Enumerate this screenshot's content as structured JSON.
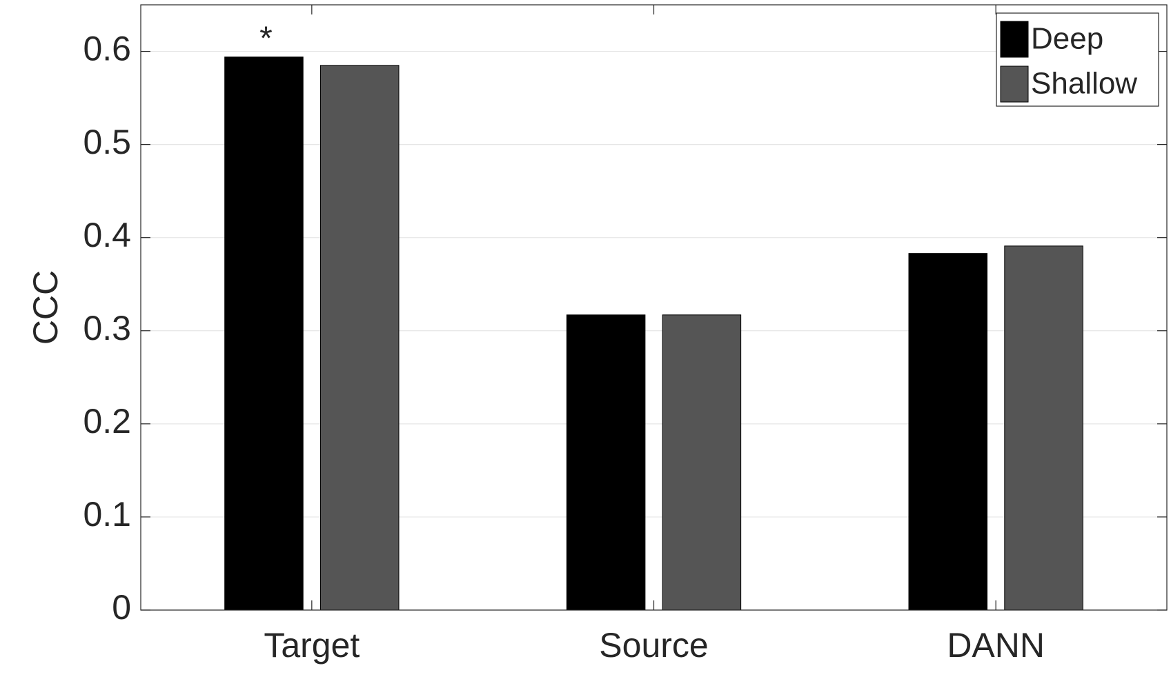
{
  "chart_data": {
    "type": "bar",
    "y_label": "CCC",
    "categories": [
      "Target",
      "Source",
      "DANN"
    ],
    "series": [
      {
        "name": "Deep",
        "color": "#000000",
        "values": [
          0.594,
          0.317,
          0.383
        ]
      },
      {
        "name": "Shallow",
        "color": "#555555",
        "values": [
          0.585,
          0.317,
          0.391
        ]
      }
    ],
    "annotation": "*",
    "ylim": [
      0,
      0.65
    ],
    "yticks": [
      0,
      0.1,
      0.2,
      0.3,
      0.4,
      0.5,
      0.6
    ],
    "grid": true,
    "legend": "top-right"
  }
}
